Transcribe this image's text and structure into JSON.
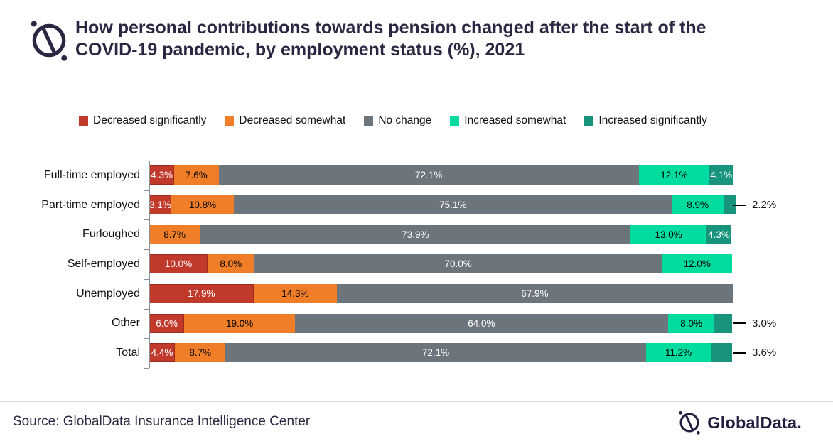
{
  "header": {
    "title_line1": "How personal contributions towards pension changed after the start of the",
    "title_line2": "COVID-19 pandemic, by employment status (%), 2021"
  },
  "footer": {
    "source": "Source: GlobalData Insurance Intelligence Center",
    "brand": "GlobalData."
  },
  "colors": {
    "title_text": "#2b2742",
    "brand_dark": "#221c3e",
    "axis": "#8a9096",
    "divider": "#d9d9d9"
  },
  "chart_data": {
    "type": "bar",
    "stacked": true,
    "orientation": "horizontal",
    "title": "How personal contributions towards pension changed after the start of the COVID-19 pandemic, by employment status (%), 2021",
    "unit": "%",
    "xlim": [
      0,
      100
    ],
    "grid": false,
    "legend_position": "top",
    "categories": [
      "Full-time employed",
      "Part-time employed",
      "Furloughed",
      "Self-employed",
      "Unemployed",
      "Other",
      "Total"
    ],
    "series": [
      {
        "name": "Decreased significantly",
        "color": "#c0392b",
        "border": "#9e2a1e",
        "label_color": "#ffffff",
        "values": [
          4.3,
          3.1,
          0,
          10.0,
          17.9,
          6.0,
          4.4
        ]
      },
      {
        "name": "Decreased somewhat",
        "color": "#f07e28",
        "border": "",
        "label_color": "#000000",
        "values": [
          7.6,
          10.8,
          8.7,
          8.0,
          14.3,
          19.0,
          8.7
        ]
      },
      {
        "name": "No change",
        "color": "#6d757c",
        "border": "",
        "label_color": "#ffffff",
        "values": [
          72.1,
          75.1,
          73.9,
          70.0,
          67.9,
          64.0,
          72.1
        ]
      },
      {
        "name": "Increased somewhat",
        "color": "#00dca0",
        "border": "",
        "label_color": "#000000",
        "values": [
          12.1,
          8.9,
          13.0,
          12.0,
          0,
          8.0,
          11.2
        ]
      },
      {
        "name": "Increased significantly",
        "color": "#18947d",
        "border": "",
        "label_color": "#ffffff",
        "values": [
          4.1,
          2.2,
          4.3,
          0,
          0,
          3.0,
          3.6
        ]
      }
    ],
    "outside_labels": {
      "series": "Increased significantly",
      "categories": [
        "Part-time employed",
        "Other",
        "Total"
      ]
    }
  }
}
